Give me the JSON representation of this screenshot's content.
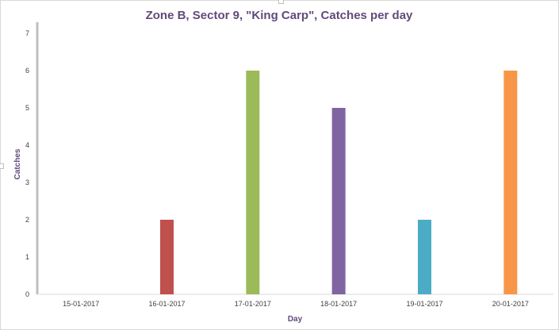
{
  "chart_data": {
    "type": "bar",
    "title": "Zone B,  Sector 9, \"King Carp\", Catches per day",
    "xlabel": "Day",
    "ylabel": "Catches",
    "categories": [
      "15-01-2017",
      "16-01-2017",
      "17-01-2017",
      "18-01-2017",
      "19-01-2017",
      "20-01-2017"
    ],
    "values": [
      0,
      2,
      6,
      5,
      2,
      6
    ],
    "colors": [
      "#4f81bd",
      "#c0504d",
      "#9bbb59",
      "#8064a2",
      "#4bacc6",
      "#f79646"
    ],
    "ylim": [
      0,
      7
    ],
    "yticks": [
      "0",
      "1",
      "2",
      "3",
      "4",
      "5",
      "6",
      "7"
    ],
    "grid": false,
    "legend": "none"
  }
}
